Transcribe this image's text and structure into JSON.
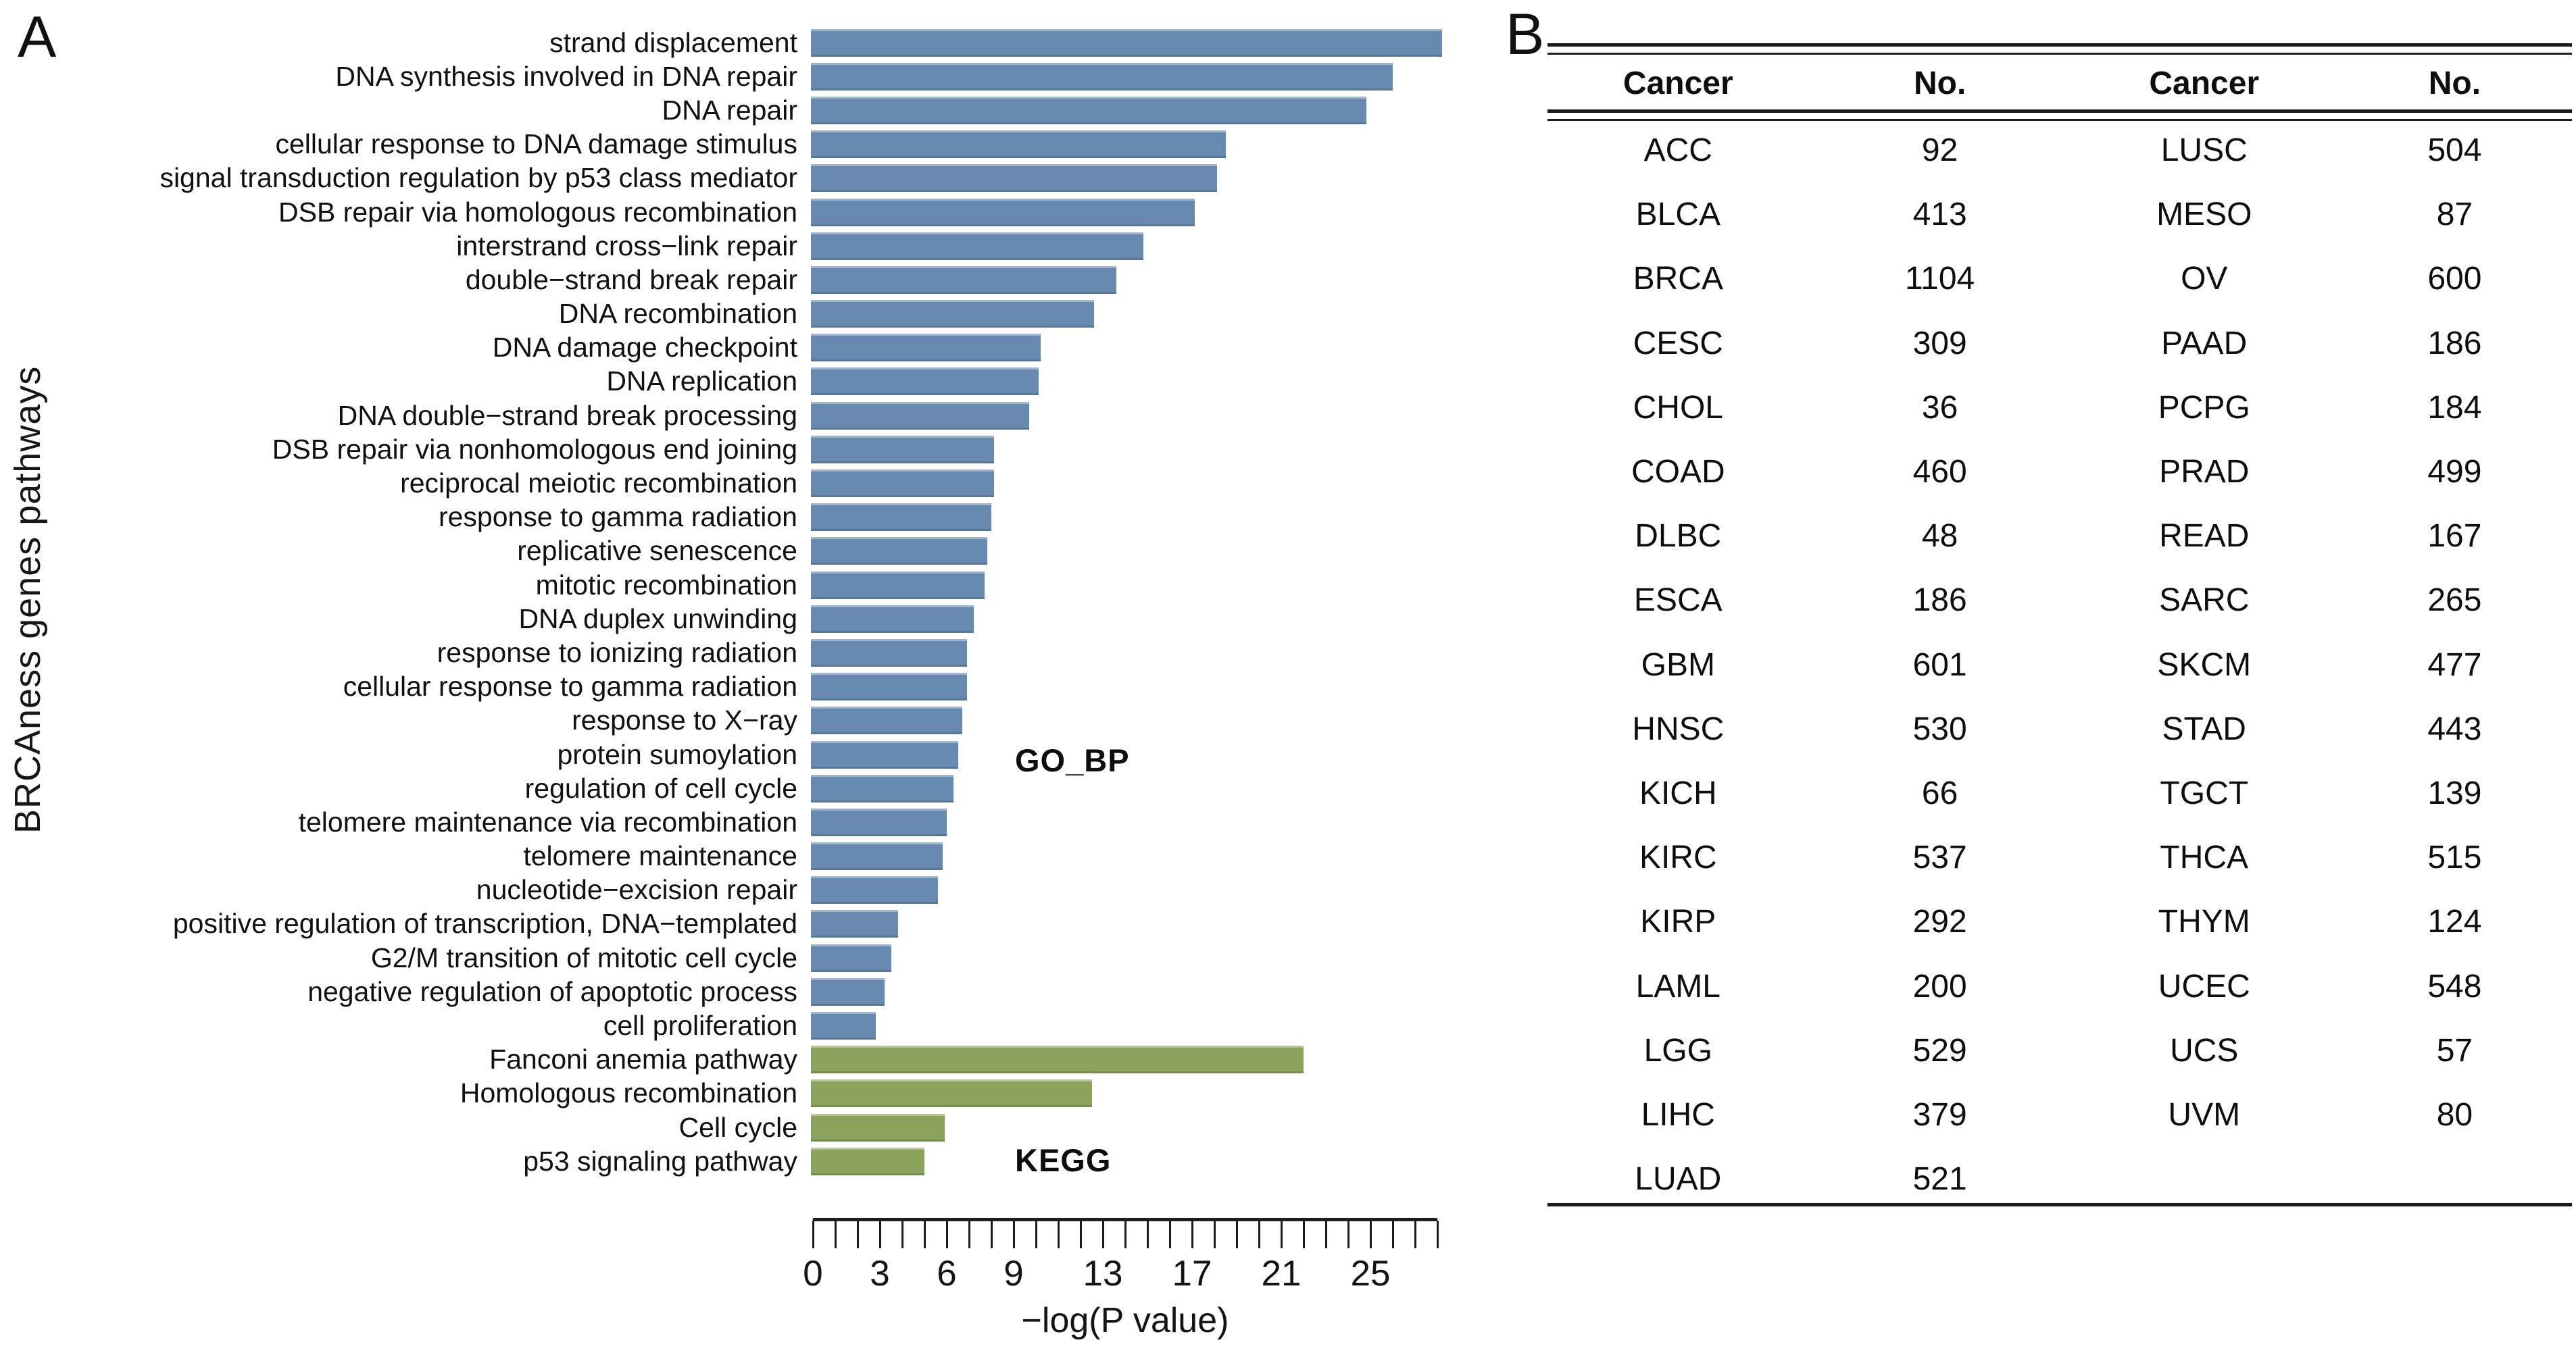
{
  "figure": {
    "panel_a_label": "A",
    "panel_b_label": "B"
  },
  "panel_a": {
    "ylabel": "BRCAness genes pathways",
    "xlabel": "−log(P value)",
    "annotations": {
      "go_bp": "GO_BP",
      "kegg": "KEGG"
    },
    "colors": {
      "go_bp_bar": "#6889b0",
      "kegg_bar": "#8ba35c"
    }
  },
  "chart_data": {
    "type": "bar",
    "orientation": "horizontal",
    "title": "",
    "xlabel": "−log(P value)",
    "ylabel": "BRCAness genes pathways",
    "xlim": [
      0,
      28
    ],
    "x_tick_step": 1,
    "x_tick_labels": [
      0,
      3,
      6,
      9,
      13,
      17,
      21,
      25
    ],
    "grid": false,
    "legend_position": "inline-annotations",
    "legend": [
      "GO_BP",
      "KEGG"
    ],
    "categories": [
      "strand displacement",
      "DNA synthesis involved in DNA repair",
      "DNA repair",
      "cellular response to DNA damage stimulus",
      "signal transduction regulation by p53 class mediator",
      "DSB repair via homologous recombination",
      "interstrand cross−link repair",
      "double−strand break repair",
      "DNA recombination",
      "DNA damage checkpoint",
      "DNA replication",
      "DNA double−strand break processing",
      "DSB repair via nonhomologous end joining",
      "reciprocal meiotic recombination",
      "response to gamma radiation",
      "replicative senescence",
      "mitotic recombination",
      "DNA duplex unwinding",
      "response to ionizing radiation",
      "cellular response to gamma radiation",
      "response to X−ray",
      "protein sumoylation",
      "regulation of cell cycle",
      "telomere maintenance via recombination",
      "telomere maintenance",
      "nucleotide−excision repair",
      "positive regulation of transcription, DNA−templated",
      "G2/M transition of mitotic cell cycle",
      "negative regulation of apoptotic process",
      "cell proliferation",
      "Fanconi anemia pathway",
      "Homologous recombination",
      "Cell cycle",
      "p53 signaling pathway"
    ],
    "values": [
      28.3,
      26.1,
      24.9,
      18.6,
      18.2,
      17.2,
      14.9,
      13.7,
      12.7,
      10.3,
      10.2,
      9.8,
      8.2,
      8.2,
      8.1,
      7.9,
      7.8,
      7.3,
      7.0,
      7.0,
      6.8,
      6.6,
      6.4,
      6.1,
      5.9,
      5.7,
      3.9,
      3.6,
      3.3,
      2.9,
      22.1,
      12.6,
      6.0,
      5.1
    ],
    "groups": [
      "GO_BP",
      "GO_BP",
      "GO_BP",
      "GO_BP",
      "GO_BP",
      "GO_BP",
      "GO_BP",
      "GO_BP",
      "GO_BP",
      "GO_BP",
      "GO_BP",
      "GO_BP",
      "GO_BP",
      "GO_BP",
      "GO_BP",
      "GO_BP",
      "GO_BP",
      "GO_BP",
      "GO_BP",
      "GO_BP",
      "GO_BP",
      "GO_BP",
      "GO_BP",
      "GO_BP",
      "GO_BP",
      "GO_BP",
      "GO_BP",
      "GO_BP",
      "GO_BP",
      "GO_BP",
      "KEGG",
      "KEGG",
      "KEGG",
      "KEGG"
    ]
  },
  "panel_b": {
    "table": {
      "headers": [
        "Cancer",
        "No.",
        "Cancer",
        "No."
      ],
      "rows": [
        [
          "ACC",
          "92",
          "LUSC",
          "504"
        ],
        [
          "BLCA",
          "413",
          "MESO",
          "87"
        ],
        [
          "BRCA",
          "1104",
          "OV",
          "600"
        ],
        [
          "CESC",
          "309",
          "PAAD",
          "186"
        ],
        [
          "CHOL",
          "36",
          "PCPG",
          "184"
        ],
        [
          "COAD",
          "460",
          "PRAD",
          "499"
        ],
        [
          "DLBC",
          "48",
          "READ",
          "167"
        ],
        [
          "ESCA",
          "186",
          "SARC",
          "265"
        ],
        [
          "GBM",
          "601",
          "SKCM",
          "477"
        ],
        [
          "HNSC",
          "530",
          "STAD",
          "443"
        ],
        [
          "KICH",
          "66",
          "TGCT",
          "139"
        ],
        [
          "KIRC",
          "537",
          "THCA",
          "515"
        ],
        [
          "KIRP",
          "292",
          "THYM",
          "124"
        ],
        [
          "LAML",
          "200",
          "UCEC",
          "548"
        ],
        [
          "LGG",
          "529",
          "UCS",
          "57"
        ],
        [
          "LIHC",
          "379",
          "UVM",
          "80"
        ],
        [
          "LUAD",
          "521",
          "",
          ""
        ]
      ]
    }
  }
}
